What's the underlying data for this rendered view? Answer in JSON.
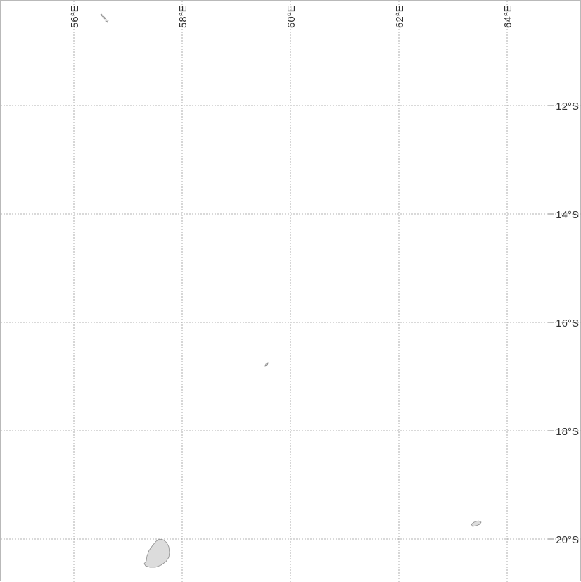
{
  "map": {
    "longitude_labels": [
      "56°E",
      "58°E",
      "60°E",
      "62°E",
      "64°E"
    ],
    "latitude_labels": [
      "12°S",
      "14°S",
      "16°S",
      "18°S",
      "20°S"
    ],
    "colors": {
      "land": "#dcdcdc",
      "coastline": "#8c8c8c",
      "graticule": "#9a9a9a",
      "background": "#ffffff"
    },
    "features": [
      "mauritius",
      "rodrigues",
      "cargados-carajos-shoals",
      "agalega-islands"
    ]
  }
}
